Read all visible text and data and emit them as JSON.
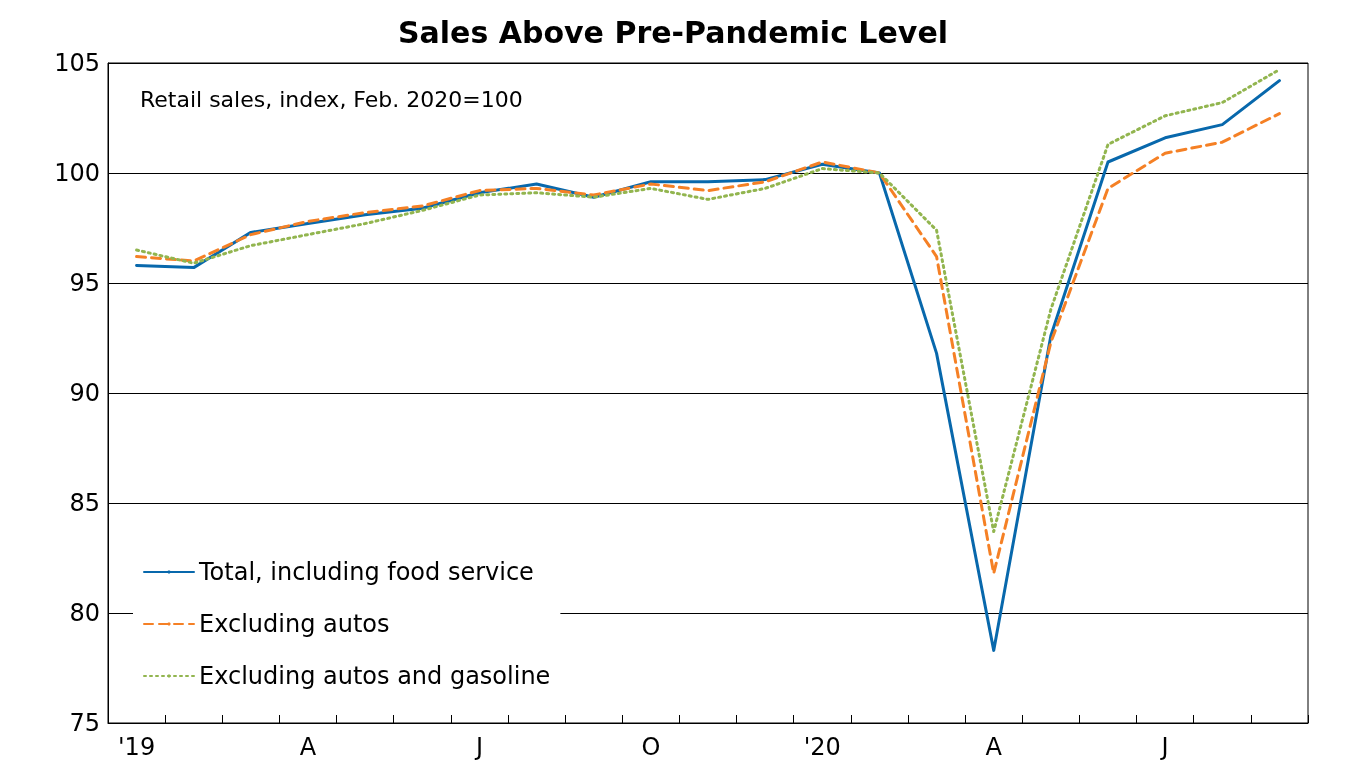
{
  "chart_data": {
    "type": "line",
    "title": "Sales Above Pre-Pandemic Level",
    "annotations": [
      "Retail sales, index, Feb. 2020=100"
    ],
    "categories": [
      "'19",
      null,
      null,
      "A",
      null,
      null,
      "J",
      null,
      null,
      "O",
      null,
      null,
      "'20",
      null,
      null,
      "A",
      null,
      null,
      "J",
      null,
      null
    ],
    "series": [
      {
        "name": "Total, including food service",
        "color": "#0868ac",
        "line_style": "solid",
        "values": [
          95.8,
          95.7,
          97.3,
          97.7,
          98.1,
          98.4,
          99.1,
          99.5,
          98.9,
          99.6,
          99.6,
          99.7,
          100.4,
          100,
          91.8,
          78.3,
          92.6,
          100.5,
          101.6,
          102.2,
          104.2
        ]
      },
      {
        "name": "Excluding autos",
        "color": "#f58025",
        "line_style": "dashed",
        "values": [
          96.2,
          96.0,
          97.2,
          97.8,
          98.2,
          98.5,
          99.2,
          99.3,
          99.0,
          99.5,
          99.2,
          99.6,
          100.5,
          100,
          96.2,
          81.8,
          92.3,
          99.3,
          100.9,
          101.4,
          102.7
        ]
      },
      {
        "name": "Excluding autos and gasoline",
        "color": "#92b54f",
        "line_style": "dotted",
        "values": [
          96.5,
          95.9,
          96.7,
          97.2,
          97.7,
          98.3,
          99.0,
          99.1,
          98.9,
          99.3,
          98.8,
          99.3,
          100.2,
          100,
          97.4,
          83.7,
          93.8,
          101.3,
          102.6,
          103.2,
          104.7
        ]
      }
    ],
    "ylim": [
      75,
      105
    ],
    "yticks": [
      75,
      80,
      85,
      90,
      95,
      100,
      105
    ],
    "grid": "y",
    "legend": "bottom left",
    "marker": "none"
  }
}
